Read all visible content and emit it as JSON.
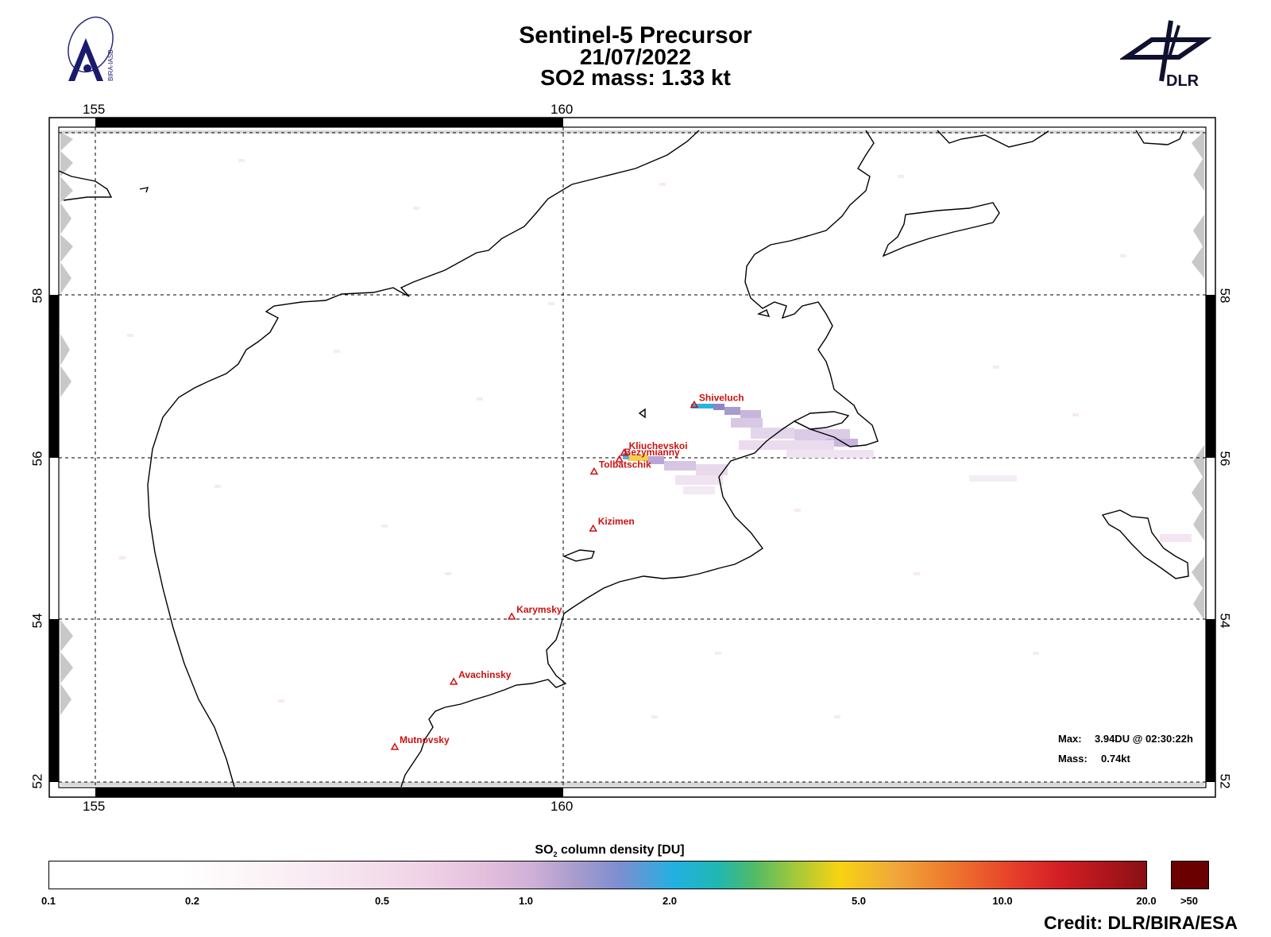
{
  "header": {
    "line1": "Sentinel-5 Precursor",
    "line2": "21/07/2022",
    "line3": "SO2 mass: 1.33   kt"
  },
  "logos": {
    "left": "BIRA-IASB",
    "right": "DLR"
  },
  "axes": {
    "lon_ticks": [
      "155",
      "160"
    ],
    "lat_ticks": [
      "58",
      "56",
      "54",
      "52"
    ]
  },
  "volcanoes": [
    {
      "name": "Shiveluch",
      "lon": 161.4,
      "lat": 56.65
    },
    {
      "name": "Kliuchevskoi",
      "lon": 160.65,
      "lat": 56.06
    },
    {
      "name": "Bezymianny",
      "lon": 160.6,
      "lat": 55.98
    },
    {
      "name": "Tolbatschik",
      "lon": 160.33,
      "lat": 55.83
    },
    {
      "name": "Kizimen",
      "lon": 160.32,
      "lat": 55.13
    },
    {
      "name": "Karymsky",
      "lon": 159.45,
      "lat": 54.05
    },
    {
      "name": "Avachinsky",
      "lon": 158.83,
      "lat": 53.25
    },
    {
      "name": "Mutnovsky",
      "lon": 158.2,
      "lat": 52.45
    }
  ],
  "info": {
    "max_label": "Max:",
    "max_value": "3.94DU @ 02:30:22h",
    "mass_label": "Mass:",
    "mass_value": "0.74kt"
  },
  "colorbar": {
    "title_prefix": "SO",
    "title_sub": "2",
    "title_suffix": " column density [DU]",
    "ticks": [
      "0.1",
      "0.2",
      "0.5",
      "1.0",
      "2.0",
      "5.0",
      "10.0",
      "20.0"
    ],
    "overflow_label": ">50",
    "overflow_color": "#6b0000"
  },
  "credit": "Credit: DLR/BIRA/ESA"
}
